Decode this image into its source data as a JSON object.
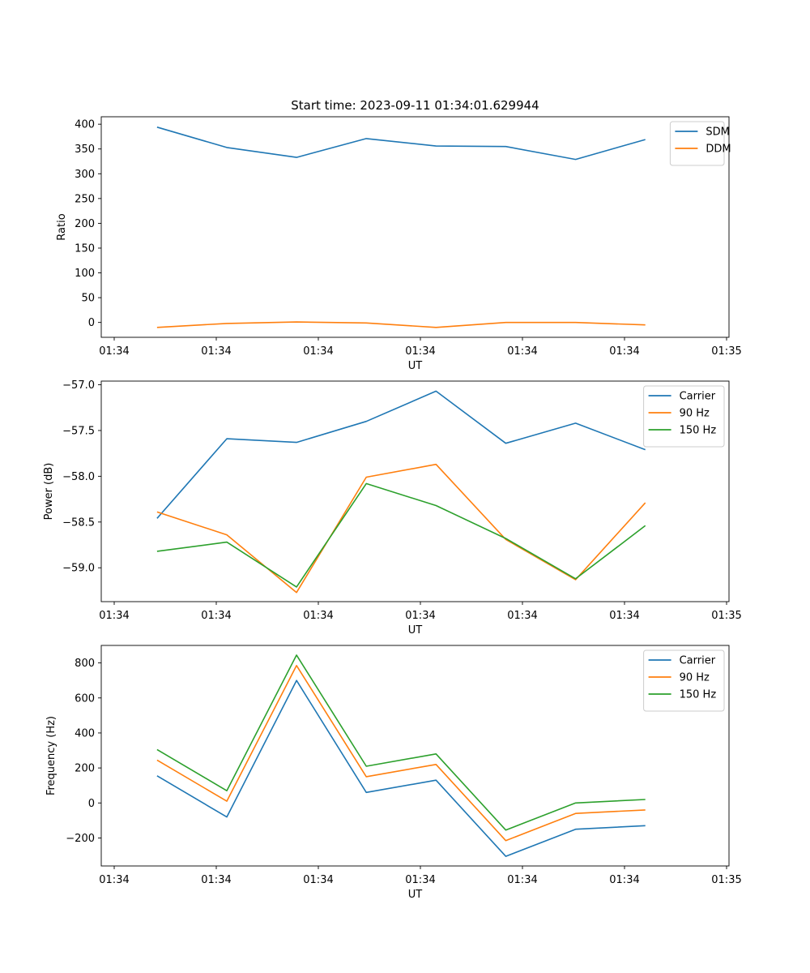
{
  "figure_title": "Start time: 2023-09-11 01:34:01.629944",
  "colors": {
    "c0": "#1f77b4",
    "c1": "#ff7f0e",
    "c2": "#2ca02c"
  },
  "chart_data": [
    {
      "type": "line",
      "xlabel": "UT",
      "ylabel": "Ratio",
      "xticks": [
        "01:34",
        "01:34",
        "01:34",
        "01:34",
        "01:34",
        "01:34",
        "01:35"
      ],
      "yticks": [
        "0",
        "50",
        "100",
        "150",
        "200",
        "250",
        "300",
        "350",
        "400"
      ],
      "ytick_values": [
        0,
        50,
        100,
        150,
        200,
        250,
        300,
        350,
        400
      ],
      "ylim": [
        -30,
        415
      ],
      "x": [
        1,
        2,
        3,
        4,
        5,
        6,
        7,
        8
      ],
      "xlim": [
        0.2,
        9.2
      ],
      "legend": "top-right",
      "series": [
        {
          "name": "SDM",
          "color": "#1f77b4",
          "values": [
            394,
            353,
            333,
            371,
            356,
            355,
            329,
            369
          ]
        },
        {
          "name": "DDM",
          "color": "#ff7f0e",
          "values": [
            -10,
            -2,
            1,
            -1,
            -10,
            0,
            0,
            -5
          ]
        }
      ]
    },
    {
      "type": "line",
      "xlabel": "UT",
      "ylabel": "Power (dB)",
      "xticks": [
        "01:34",
        "01:34",
        "01:34",
        "01:34",
        "01:34",
        "01:34",
        "01:35"
      ],
      "yticks": [
        "−59.0",
        "−58.5",
        "−58.0",
        "−57.5",
        "−57.0"
      ],
      "ytick_values": [
        -59.0,
        -58.5,
        -58.0,
        -57.5,
        -57.0
      ],
      "ylim": [
        -59.37,
        -56.96
      ],
      "x": [
        1,
        2,
        3,
        4,
        5,
        6,
        7,
        8
      ],
      "xlim": [
        0.2,
        9.2
      ],
      "legend": "top-right",
      "series": [
        {
          "name": "Carrier",
          "color": "#1f77b4",
          "values": [
            -58.46,
            -57.59,
            -57.63,
            -57.4,
            -57.07,
            -57.64,
            -57.42,
            -57.71
          ]
        },
        {
          "name": "90 Hz",
          "color": "#ff7f0e",
          "values": [
            -58.39,
            -58.64,
            -59.27,
            -58.01,
            -57.87,
            -58.69,
            -59.13,
            -58.29
          ]
        },
        {
          "name": "150 Hz",
          "color": "#2ca02c",
          "values": [
            -58.82,
            -58.72,
            -59.21,
            -58.08,
            -58.32,
            -58.68,
            -59.12,
            -58.54
          ]
        }
      ]
    },
    {
      "type": "line",
      "xlabel": "UT",
      "ylabel": "Frequency (Hz)",
      "xticks": [
        "01:34",
        "01:34",
        "01:34",
        "01:34",
        "01:34",
        "01:34",
        "01:35"
      ],
      "yticks": [
        "−200",
        "0",
        "200",
        "400",
        "600",
        "800"
      ],
      "ytick_values": [
        -200,
        0,
        200,
        400,
        600,
        800
      ],
      "ylim": [
        -360,
        900
      ],
      "x": [
        1,
        2,
        3,
        4,
        5,
        6,
        7,
        8
      ],
      "xlim": [
        0.2,
        9.2
      ],
      "legend": "top-right",
      "series": [
        {
          "name": "Carrier",
          "color": "#1f77b4",
          "values": [
            155,
            -80,
            700,
            60,
            130,
            -305,
            -150,
            -130
          ]
        },
        {
          "name": "90 Hz",
          "color": "#ff7f0e",
          "values": [
            245,
            10,
            785,
            150,
            220,
            -215,
            -60,
            -40
          ]
        },
        {
          "name": "150 Hz",
          "color": "#2ca02c",
          "values": [
            305,
            70,
            845,
            210,
            280,
            -155,
            0,
            20
          ]
        }
      ]
    }
  ]
}
